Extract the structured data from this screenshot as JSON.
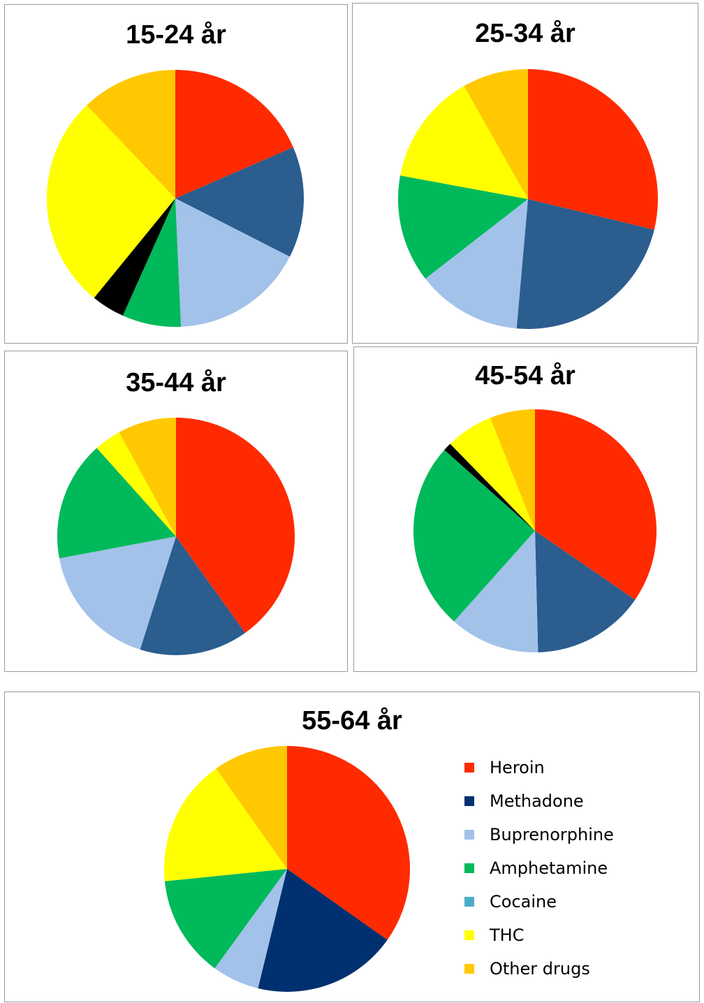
{
  "chart_data": [
    {
      "type": "pie",
      "title": "15-24 år",
      "categories": [
        "Heroin",
        "Methadone",
        "Buprenorphine",
        "Amphetamine",
        "Cocaine",
        "THC",
        "Other drugs"
      ],
      "values": [
        18.5,
        14.0,
        16.8,
        7.4,
        4.2,
        27.0,
        12.1
      ],
      "colors": [
        "#ff2a00",
        "#2b5d8f",
        "#a2c2ea",
        "#00b95a",
        "#000000",
        "#ffff00",
        "#ffc800"
      ]
    },
    {
      "type": "pie",
      "title": "25-34 år",
      "categories": [
        "Heroin",
        "Methadone",
        "Buprenorphine",
        "Amphetamine",
        "Cocaine",
        "THC",
        "Other drugs"
      ],
      "values": [
        28.8,
        22.6,
        13.1,
        13.4,
        0,
        13.9,
        8.2
      ],
      "colors": [
        "#ff2a00",
        "#2b5d8f",
        "#a2c2ea",
        "#00b95a",
        "#000000",
        "#ffff00",
        "#ffc800"
      ]
    },
    {
      "type": "pie",
      "title": "35-44 år",
      "categories": [
        "Heroin",
        "Methadone",
        "Buprenorphine",
        "Amphetamine",
        "Cocaine",
        "THC",
        "Other drugs"
      ],
      "values": [
        39.3,
        14.5,
        16.8,
        16.0,
        0,
        3.6,
        7.8
      ],
      "colors": [
        "#ff2a00",
        "#2b5d8f",
        "#a2c2ea",
        "#00b95a",
        "#000000",
        "#ffff00",
        "#ffc800"
      ]
    },
    {
      "type": "pie",
      "title": "45-54 år",
      "categories": [
        "Heroin",
        "Methadone",
        "Buprenorphine",
        "Amphetamine",
        "Cocaine",
        "THC",
        "Other drugs"
      ],
      "values": [
        34.6,
        15.0,
        12.0,
        25.0,
        1.1,
        6.3,
        6.0
      ],
      "colors": [
        "#ff2a00",
        "#2b5d8f",
        "#a2c2ea",
        "#00b95a",
        "#000000",
        "#ffff00",
        "#ffc800"
      ]
    },
    {
      "type": "pie",
      "title": "55-64 år",
      "categories": [
        "Heroin",
        "Methadone",
        "Buprenorphine",
        "Amphetamine",
        "Cocaine",
        "THC",
        "Other drugs"
      ],
      "values": [
        34.8,
        19.0,
        6.2,
        13.4,
        0,
        16.8,
        9.8
      ],
      "colors": [
        "#ff2a00",
        "#003070",
        "#a2c2ea",
        "#00b95a",
        "#4bacc6",
        "#ffff00",
        "#ffc800"
      ]
    }
  ],
  "legend": {
    "placement": "right",
    "items": [
      {
        "label": "Heroin",
        "color": "#ff2a00"
      },
      {
        "label": "Methadone",
        "color": "#003070"
      },
      {
        "label": "Buprenorphine",
        "color": "#a2c2ea"
      },
      {
        "label": "Amphetamine",
        "color": "#00b95a"
      },
      {
        "label": "Cocaine",
        "color": "#4bacc6"
      },
      {
        "label": "THC",
        "color": "#ffff00"
      },
      {
        "label": "Other drugs",
        "color": "#ffc800"
      }
    ]
  }
}
